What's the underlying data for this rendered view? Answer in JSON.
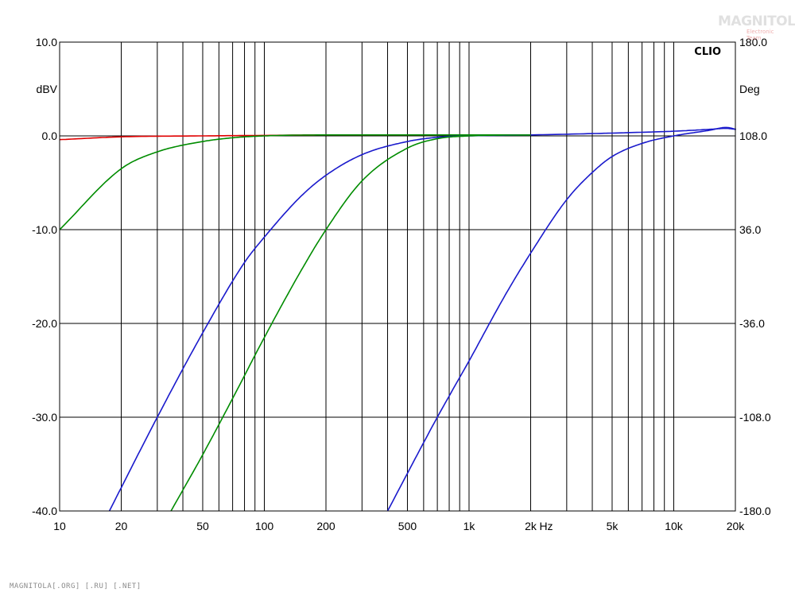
{
  "chart_data": {
    "type": "line",
    "brand_label": "CLIO",
    "x_scale": "log",
    "xlim": [
      10,
      20000
    ],
    "ylim": [
      -40,
      10
    ],
    "y2lim": [
      -180,
      180
    ],
    "x_unit_label": "Hz",
    "y_unit_label": "dBV",
    "y2_unit_label": "Deg",
    "grid": true,
    "x_ticks": [
      {
        "value": 10,
        "label": "10"
      },
      {
        "value": 20,
        "label": "20"
      },
      {
        "value": 50,
        "label": "50"
      },
      {
        "value": 100,
        "label": "100"
      },
      {
        "value": 200,
        "label": "200"
      },
      {
        "value": 500,
        "label": "500"
      },
      {
        "value": 1000,
        "label": "1k"
      },
      {
        "value": 2000,
        "label": "2k"
      },
      {
        "value": 5000,
        "label": "5k"
      },
      {
        "value": 10000,
        "label": "10k"
      },
      {
        "value": 20000,
        "label": "20k"
      }
    ],
    "y_ticks": [
      {
        "value": 10,
        "label": "10.0"
      },
      {
        "value": 0,
        "label": "0.0"
      },
      {
        "value": -10,
        "label": "-10.0"
      },
      {
        "value": -20,
        "label": "-20.0"
      },
      {
        "value": -30,
        "label": "-30.0"
      },
      {
        "value": -40,
        "label": "-40.0"
      }
    ],
    "y2_ticks": [
      {
        "value": 180,
        "label": "180.0"
      },
      {
        "value": 108,
        "label": "108.0"
      },
      {
        "value": 36,
        "label": "36.0"
      },
      {
        "value": -36,
        "label": "-36.0"
      },
      {
        "value": -108,
        "label": "-108.0"
      },
      {
        "value": -180,
        "label": "-180.0"
      }
    ],
    "series": [
      {
        "color": "#e00000",
        "x": [
          10,
          20,
          50,
          100,
          200,
          500,
          1000,
          2000
        ],
        "y": [
          -0.4,
          -0.1,
          0.0,
          0.05,
          0.1,
          0.1,
          0.1,
          0.1
        ]
      },
      {
        "color": "#008c00",
        "x": [
          10,
          20,
          30,
          50,
          70,
          100,
          200,
          500,
          1000,
          2000
        ],
        "y": [
          -10.0,
          -3.5,
          -1.7,
          -0.6,
          -0.2,
          0.0,
          0.1,
          0.1,
          0.1,
          0.1
        ]
      },
      {
        "color": "#1a1acc",
        "x": [
          17.5,
          30,
          50,
          80,
          100,
          150,
          200,
          300,
          500,
          700,
          1000,
          2000,
          5000,
          10000,
          15000,
          18000,
          20000
        ],
        "y": [
          -40.0,
          -30.0,
          -21.0,
          -13.5,
          -10.8,
          -6.5,
          -4.2,
          -2.0,
          -0.6,
          -0.15,
          0.0,
          0.1,
          0.3,
          0.5,
          0.7,
          0.8,
          0.7
        ]
      },
      {
        "color": "#008c00",
        "x": [
          35,
          50,
          70,
          100,
          150,
          200,
          300,
          500,
          700,
          1000,
          2000
        ],
        "y": [
          -40.0,
          -34.0,
          -28.0,
          -21.5,
          -14.5,
          -10.0,
          -4.8,
          -1.3,
          -0.3,
          0.0,
          0.1
        ]
      },
      {
        "color": "#1a1acc",
        "x": [
          400,
          700,
          1000,
          1500,
          2000,
          3000,
          4000,
          5000,
          7000,
          10000,
          15000,
          18000,
          20000,
          21000
        ],
        "y": [
          -40.0,
          -30.0,
          -24.0,
          -17.0,
          -12.5,
          -6.8,
          -3.9,
          -2.2,
          -0.8,
          0.0,
          0.6,
          0.9,
          0.7,
          0.5
        ]
      }
    ]
  },
  "footer_text": "MAGNITOLA[.ORG] [.RU] [.NET]",
  "logo_text": "MAGNITOLA",
  "logo_subtext": "Electronic Team"
}
